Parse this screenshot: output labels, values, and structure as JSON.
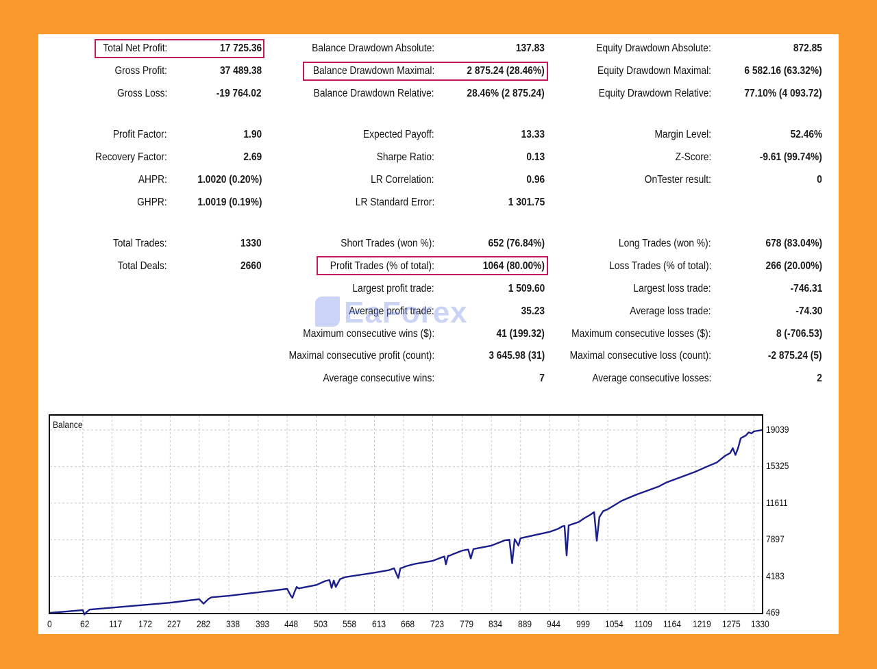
{
  "stats": {
    "total_net_profit": {
      "label": "Total Net Profit:",
      "value": "17 725.36"
    },
    "gross_profit": {
      "label": "Gross Profit:",
      "value": "37 489.38"
    },
    "gross_loss": {
      "label": "Gross Loss:",
      "value": "-19 764.02"
    },
    "profit_factor": {
      "label": "Profit Factor:",
      "value": "1.90"
    },
    "recovery_factor": {
      "label": "Recovery Factor:",
      "value": "2.69"
    },
    "ahpr": {
      "label": "AHPR:",
      "value": "1.0020 (0.20%)"
    },
    "ghpr": {
      "label": "GHPR:",
      "value": "1.0019 (0.19%)"
    },
    "total_trades": {
      "label": "Total Trades:",
      "value": "1330"
    },
    "total_deals": {
      "label": "Total Deals:",
      "value": "2660"
    },
    "balance_dd_absolute": {
      "label": "Balance Drawdown Absolute:",
      "value": "137.83"
    },
    "balance_dd_maximal": {
      "label": "Balance Drawdown Maximal:",
      "value": "2 875.24 (28.46%)"
    },
    "balance_dd_relative": {
      "label": "Balance Drawdown Relative:",
      "value": "28.46% (2 875.24)"
    },
    "expected_payoff": {
      "label": "Expected Payoff:",
      "value": "13.33"
    },
    "sharpe_ratio": {
      "label": "Sharpe Ratio:",
      "value": "0.13"
    },
    "lr_correlation": {
      "label": "LR Correlation:",
      "value": "0.96"
    },
    "lr_standard_error": {
      "label": "LR Standard Error:",
      "value": "1 301.75"
    },
    "short_trades": {
      "label": "Short Trades (won %):",
      "value": "652 (76.84%)"
    },
    "profit_trades": {
      "label": "Profit Trades (% of total):",
      "value": "1064 (80.00%)"
    },
    "largest_profit_trade": {
      "label": "Largest profit trade:",
      "value": "1 509.60"
    },
    "average_profit_trade": {
      "label": "Average profit trade:",
      "value": "35.23"
    },
    "max_consecutive_wins": {
      "label": "Maximum consecutive wins ($):",
      "value": "41 (199.32)"
    },
    "maximal_consecutive_profit": {
      "label": "Maximal consecutive profit (count):",
      "value": "3 645.98 (31)"
    },
    "average_consecutive_wins": {
      "label": "Average consecutive wins:",
      "value": "7"
    },
    "equity_dd_absolute": {
      "label": "Equity Drawdown Absolute:",
      "value": "872.85"
    },
    "equity_dd_maximal": {
      "label": "Equity Drawdown Maximal:",
      "value": "6 582.16 (63.32%)"
    },
    "equity_dd_relative": {
      "label": "Equity Drawdown Relative:",
      "value": "77.10% (4 093.72)"
    },
    "margin_level": {
      "label": "Margin Level:",
      "value": "52.46%"
    },
    "z_score": {
      "label": "Z-Score:",
      "value": "-9.61 (99.74%)"
    },
    "ontester_result": {
      "label": "OnTester result:",
      "value": "0"
    },
    "long_trades": {
      "label": "Long Trades (won %):",
      "value": "678 (83.04%)"
    },
    "loss_trades": {
      "label": "Loss Trades (% of total):",
      "value": "266 (20.00%)"
    },
    "largest_loss_trade": {
      "label": "Largest loss trade:",
      "value": "-746.31"
    },
    "average_loss_trade": {
      "label": "Average loss trade:",
      "value": "-74.30"
    },
    "max_consecutive_losses": {
      "label": "Maximum consecutive losses ($):",
      "value": "8 (-706.53)"
    },
    "maximal_consecutive_loss": {
      "label": "Maximal consecutive loss (count):",
      "value": "-2 875.24 (5)"
    },
    "average_consecutive_losses": {
      "label": "Average consecutive losses:",
      "value": "2"
    }
  },
  "watermark": "EaForex",
  "colors": {
    "background": "#fb9a2c",
    "highlight": "#c0185a",
    "line": "#1a1f8c",
    "grid": "#c8c8c8"
  },
  "chart_data": {
    "type": "line",
    "title": "Balance",
    "xlabel": "",
    "ylabel": "",
    "x_ticks": [
      "0",
      "62",
      "117",
      "172",
      "227",
      "282",
      "338",
      "393",
      "448",
      "503",
      "558",
      "613",
      "668",
      "723",
      "779",
      "834",
      "889",
      "944",
      "999",
      "1054",
      "1109",
      "1164",
      "1219",
      "1275",
      "1330"
    ],
    "y_ticks": [
      "469",
      "4183",
      "7897",
      "11611",
      "15325",
      "19039"
    ],
    "xlim": [
      0,
      1345
    ],
    "ylim": [
      469,
      20500
    ],
    "grid": true,
    "series": [
      {
        "name": "",
        "x": [
          0,
          30,
          62,
          65,
          69,
          75,
          117,
          172,
          227,
          250,
          282,
          290,
          300,
          305,
          338,
          393,
          448,
          455,
          458,
          462,
          466,
          470,
          503,
          520,
          528,
          532,
          536,
          540,
          548,
          553,
          558,
          613,
          640,
          650,
          658,
          662,
          666,
          672,
          690,
          723,
          740,
          745,
          748,
          752,
          756,
          760,
          779,
          790,
          795,
          800,
          805,
          834,
          860,
          868,
          873,
          878,
          885,
          889,
          944,
          960,
          968,
          972,
          976,
          980,
          999,
          1010,
          1020,
          1028,
          1033,
          1038,
          1045,
          1054,
          1080,
          1100,
          1109,
          1150,
          1164,
          1219,
          1240,
          1260,
          1275,
          1285,
          1290,
          1295,
          1300,
          1305,
          1315,
          1320,
          1325,
          1330,
          1345
        ],
        "y": [
          469,
          600,
          750,
          300,
          550,
          800,
          1000,
          1250,
          1500,
          1650,
          1850,
          1400,
          1900,
          2050,
          2200,
          2550,
          2900,
          2200,
          2000,
          2600,
          3100,
          2950,
          3300,
          3700,
          3800,
          3000,
          3750,
          3100,
          3900,
          4000,
          4100,
          4550,
          4800,
          5000,
          4000,
          5000,
          5050,
          5200,
          5450,
          5750,
          6100,
          6200,
          5400,
          6250,
          6300,
          6400,
          6800,
          6900,
          6000,
          6950,
          7000,
          7300,
          7850,
          7900,
          5500,
          7950,
          7300,
          8050,
          8700,
          9000,
          9250,
          9300,
          6300,
          9350,
          9700,
          10100,
          10400,
          10700,
          7800,
          10200,
          10800,
          11000,
          11850,
          12300,
          12500,
          13300,
          13700,
          14800,
          15300,
          15750,
          16400,
          16700,
          17200,
          16500,
          17200,
          18200,
          18500,
          18800,
          18700,
          18900,
          19039
        ]
      }
    ]
  }
}
